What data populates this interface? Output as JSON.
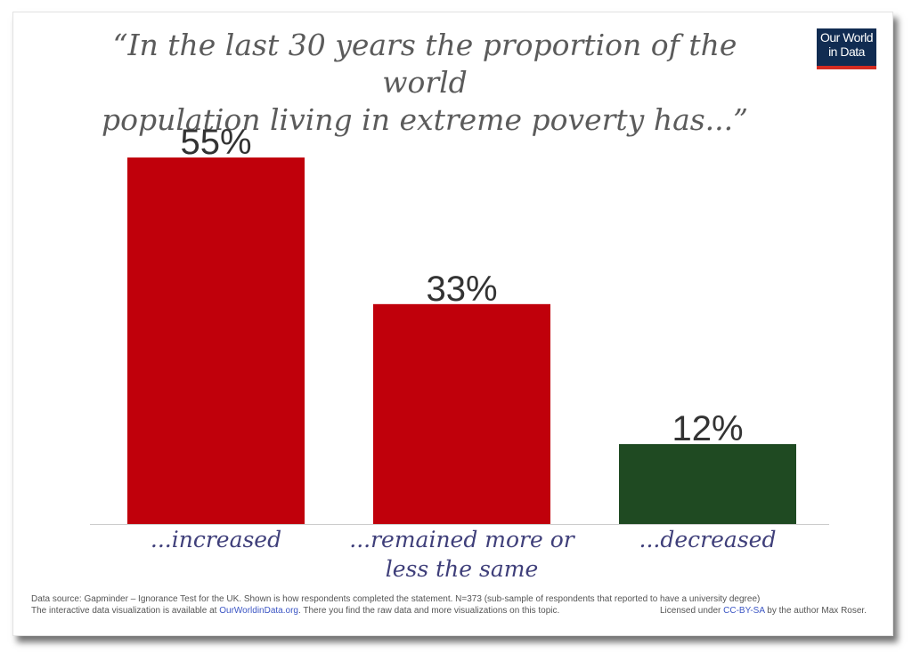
{
  "title": {
    "line1": "“In the last 30 years the proportion of the world",
    "line2": "population living in extreme poverty has...”"
  },
  "logo": {
    "line1": "Our World",
    "line2": "in Data"
  },
  "chart_data": {
    "type": "bar",
    "categories": [
      [
        "...increased"
      ],
      [
        "...remained more or",
        "less the same"
      ],
      [
        "...decreased"
      ]
    ],
    "values": [
      55,
      33,
      12
    ],
    "value_labels": [
      "55%",
      "33%",
      "12%"
    ],
    "colors": [
      "#c0000b",
      "#c0000b",
      "#1f4a22"
    ],
    "ylim": [
      0,
      60
    ],
    "grid": false,
    "legend": "none"
  },
  "footer": {
    "source_text": "Data source: Gapminder – Ignorance Test for the UK. Shown is how respondents completed the statement. N=373 (sub-sample of respondents that reported to have a university degree)",
    "viz_prefix": "The interactive data visualization is available at ",
    "viz_link": "OurWorldinData.org",
    "viz_suffix": ". There you find the raw data and more visualizations on this topic.",
    "license_prefix": "Licensed under ",
    "license_link": "CC-BY-SA",
    "license_suffix": " by the author Max Roser."
  }
}
